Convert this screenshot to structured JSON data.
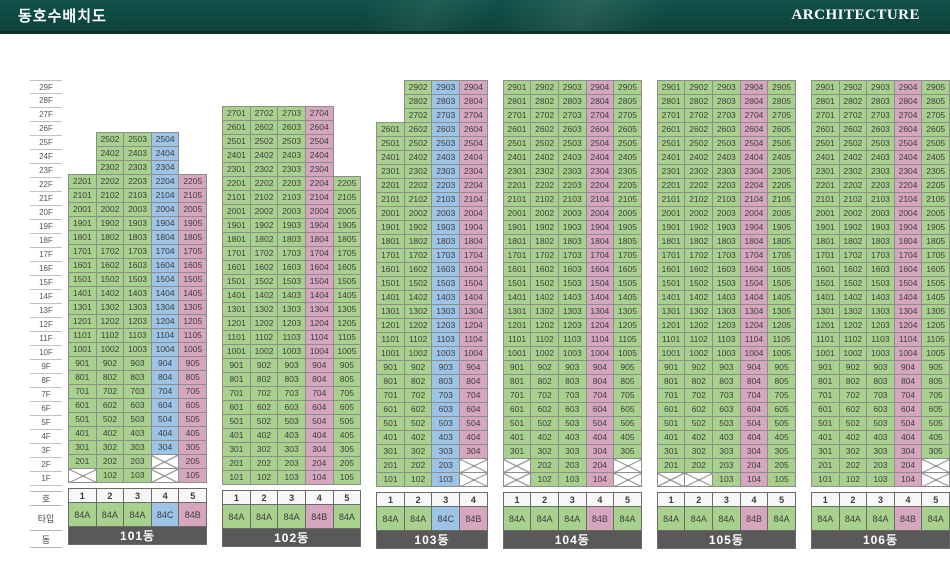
{
  "header": {
    "title": "동호수배치도",
    "brand": "ARCHITECTURE"
  },
  "colors": {
    "type_green": "#a9d18e",
    "type_blue": "#9dc3e6",
    "type_pink": "#d5a6bd",
    "header_bg": "#0d453f",
    "building_bar_bg": "#595959",
    "building_bar_text": "#ffffff"
  },
  "row_labels": {
    "ho": "호",
    "type": "타입",
    "dong": "동"
  },
  "floors": [
    "29F",
    "28F",
    "27F",
    "26F",
    "25F",
    "24F",
    "23F",
    "22F",
    "21F",
    "20F",
    "19F",
    "18F",
    "17F",
    "16F",
    "15F",
    "14F",
    "13F",
    "12F",
    "11F",
    "10F",
    "9F",
    "8F",
    "7F",
    "6F",
    "5F",
    "4F",
    "3F",
    "2F",
    "1F"
  ],
  "buildings": [
    {
      "name": "101동",
      "ho": [
        "1",
        "2",
        "3",
        "4",
        "5"
      ],
      "types": [
        "84A",
        "84A",
        "84A",
        "84C",
        "84B"
      ],
      "type_colors": [
        "g",
        "g",
        "g",
        "b",
        "p"
      ],
      "rows": [
        "-|-|-|-|-",
        "-|-|-|-|-",
        "-|-|-|-|-",
        "-|-|-|-|-",
        "-|2502|2503|2504|-",
        "-|2402|2403|2404|-",
        "-|2302|2303|2304|-",
        "2201|2202|2203|2204|2205",
        "2101|2102|2103|2104|2105",
        "2001|2002|2003|2004|2005",
        "1901|1902|1903|1904|1905",
        "1801|1802|1803|1804|1805",
        "1701|1702|1703|1704|1705",
        "1601|1602|1603|1604|1605",
        "1501|1502|1503|1504|1505",
        "1401|1402|1403|1404|1405",
        "1301|1302|1303|1304|1305",
        "1201|1202|1203|1204|1205",
        "1101|1102|1103|1104|1105",
        "1001|1002|1003|1004|1005",
        "901|902|903|904|905",
        "801|802|803|804|805",
        "701|702|703|704|705",
        "601|602|603|604|605",
        "501|502|503|504|505",
        "401|402|403|404|405",
        "301|302|303|304|305",
        "201|202|203|X|205",
        "X|102|103|X|105"
      ]
    },
    {
      "name": "102동",
      "ho": [
        "1",
        "2",
        "3",
        "4",
        "5"
      ],
      "types": [
        "84A",
        "84A",
        "84A",
        "84B",
        "84A"
      ],
      "type_colors": [
        "g",
        "g",
        "g",
        "p",
        "g"
      ],
      "rows": [
        "-|-|-|-|-",
        "-|-|-|-|-",
        "2701|2702|2703|2704|-",
        "2601|2602|2603|2604|-",
        "2501|2502|2503|2504|-",
        "2401|2402|2403|2404|-",
        "2301|2302|2303|2304|-",
        "2201|2202|2203|2204|2205",
        "2101|2102|2103|2104|2105",
        "2001|2002|2003|2004|2005",
        "1901|1902|1903|1904|1905",
        "1801|1802|1803|1804|1805",
        "1701|1702|1703|1704|1705",
        "1601|1602|1603|1604|1605",
        "1501|1502|1503|1504|1505",
        "1401|1402|1403|1404|1405",
        "1301|1302|1303|1304|1305",
        "1201|1202|1203|1204|1205",
        "1101|1102|1103|1104|1105",
        "1001|1002|1003|1004|1005",
        "901|902|903|904|905",
        "801|802|803|804|805",
        "701|702|703|704|705",
        "601|602|603|604|605",
        "501|502|503|504|505",
        "401|402|403|404|405",
        "301|302|303|304|305",
        "201|202|203|204|205",
        "101|102|103|104|105"
      ]
    },
    {
      "name": "103동",
      "ho": [
        "1",
        "2",
        "3",
        "4"
      ],
      "types": [
        "84A",
        "84A",
        "84C",
        "84B"
      ],
      "type_colors": [
        "g",
        "g",
        "b",
        "p"
      ],
      "rows": [
        "-|2902|2903|2904",
        "-|2802|2803|2804",
        "-|2702|2703|2704",
        "2601|2602|2603|2604",
        "2501|2502|2503|2504",
        "2401|2402|2403|2404",
        "2301|2302|2303|2304",
        "2201|2202|2203|2204",
        "2101|2102|2103|2104",
        "2001|2002|2003|2004",
        "1901|1902|1903|1904",
        "1801|1802|1803|1804",
        "1701|1702|1703|1704",
        "1601|1602|1603|1604",
        "1501|1502|1503|1504",
        "1401|1402|1403|1404",
        "1301|1302|1303|1304",
        "1201|1202|1203|1204",
        "1101|1102|1103|1104",
        "1001|1002|1003|1004",
        "901|902|903|904",
        "801|802|803|804",
        "701|702|703|704",
        "601|602|603|604",
        "501|502|503|504",
        "401|402|403|404",
        "301|302|303|304",
        "201|202|203|X",
        "101|102|103|X"
      ]
    },
    {
      "name": "104동",
      "ho": [
        "1",
        "2",
        "3",
        "4",
        "5"
      ],
      "types": [
        "84A",
        "84A",
        "84A",
        "84B",
        "84A"
      ],
      "type_colors": [
        "g",
        "g",
        "g",
        "p",
        "g"
      ],
      "rows": [
        "2901|2902|2903|2904|2905",
        "2801|2802|2803|2804|2805",
        "2701|2702|2703|2704|2705",
        "2601|2602|2603|2604|2605",
        "2501|2502|2503|2504|2505",
        "2401|2402|2403|2404|2405",
        "2301|2302|2303|2304|2305",
        "2201|2202|2203|2204|2205",
        "2101|2102|2103|2104|2105",
        "2001|2002|2003|2004|2005",
        "1901|1902|1903|1904|1905",
        "1801|1802|1803|1804|1805",
        "1701|1702|1703|1704|1705",
        "1601|1602|1603|1604|1605",
        "1501|1502|1503|1504|1505",
        "1401|1402|1403|1404|1405",
        "1301|1302|1303|1304|1305",
        "1201|1202|1203|1204|1205",
        "1101|1102|1103|1104|1105",
        "1001|1002|1003|1004|1005",
        "901|902|903|904|905",
        "801|802|803|804|805",
        "701|702|703|704|705",
        "601|602|603|604|605",
        "501|502|503|504|505",
        "401|402|403|404|405",
        "301|302|303|304|305",
        "X|202|203|204|X",
        "X|102|103|104|X"
      ]
    },
    {
      "name": "105동",
      "ho": [
        "1",
        "2",
        "3",
        "4",
        "5"
      ],
      "types": [
        "84A",
        "84A",
        "84A",
        "84B",
        "84A"
      ],
      "type_colors": [
        "g",
        "g",
        "g",
        "p",
        "g"
      ],
      "rows": [
        "2901|2902|2903|2904|2905",
        "2801|2802|2803|2804|2805",
        "2701|2702|2703|2704|2705",
        "2601|2602|2603|2604|2605",
        "2501|2502|2503|2504|2505",
        "2401|2402|2403|2404|2405",
        "2301|2302|2303|2304|2305",
        "2201|2202|2203|2204|2205",
        "2101|2102|2103|2104|2105",
        "2001|2002|2003|2004|2005",
        "1901|1902|1903|1904|1905",
        "1801|1802|1803|1804|1805",
        "1701|1702|1703|1704|1705",
        "1601|1602|1603|1604|1605",
        "1501|1502|1503|1504|1505",
        "1401|1402|1403|1404|1405",
        "1301|1302|1303|1304|1305",
        "1201|1202|1203|1204|1205",
        "1101|1102|1103|1104|1105",
        "1001|1002|1003|1004|1005",
        "901|902|903|904|905",
        "801|802|803|804|805",
        "701|702|703|704|705",
        "601|602|603|604|605",
        "501|502|503|504|505",
        "401|402|403|404|405",
        "301|302|303|304|305",
        "201|202|203|204|205",
        "X|X|103|104|105"
      ]
    },
    {
      "name": "106동",
      "ho": [
        "1",
        "2",
        "3",
        "4",
        "5"
      ],
      "types": [
        "84A",
        "84A",
        "84A",
        "84B",
        "84A"
      ],
      "type_colors": [
        "g",
        "g",
        "g",
        "p",
        "g"
      ],
      "rows": [
        "2901|2902|2903|2904|2905",
        "2801|2802|2803|2804|2805",
        "2701|2702|2703|2704|2705",
        "2601|2602|2603|2604|2605",
        "2501|2502|2503|2504|2505",
        "2401|2402|2403|2404|2405",
        "2301|2302|2303|2304|2305",
        "2201|2202|2203|2204|2205",
        "2101|2102|2103|2104|2105",
        "2001|2002|2003|2004|2005",
        "1901|1902|1903|1904|1905",
        "1801|1802|1803|1804|1805",
        "1701|1702|1703|1704|1705",
        "1601|1602|1603|1604|1605",
        "1501|1502|1503|1504|1505",
        "1401|1402|1403|1404|1405",
        "1301|1302|1303|1304|1305",
        "1201|1202|1203|1204|1205",
        "1101|1102|1103|1104|1105",
        "1001|1002|1003|1004|1005",
        "901|902|903|904|905",
        "801|802|803|804|805",
        "701|702|703|704|705",
        "601|602|603|604|605",
        "501|502|503|504|505",
        "401|402|403|404|405",
        "301|302|303|304|305",
        "201|202|203|204|X",
        "101|102|103|104|X"
      ]
    }
  ]
}
